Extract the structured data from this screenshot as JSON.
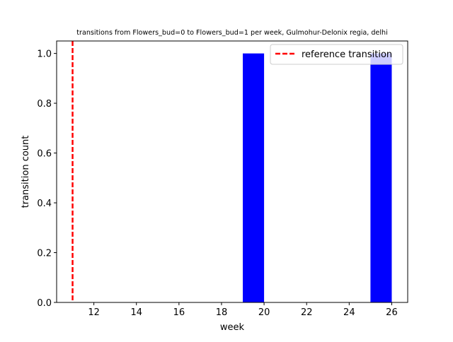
{
  "chart_data": {
    "type": "bar",
    "title": "transitions from Flowers_bud=0 to Flowers_bud=1 per week, Gulmohur-Delonix regia, delhi",
    "xlabel": "week",
    "ylabel": "transition count",
    "xlim": [
      10.25,
      26.75
    ],
    "ylim": [
      0,
      1.05
    ],
    "x_ticks": [
      12,
      14,
      16,
      18,
      20,
      22,
      24,
      26
    ],
    "y_ticks": [
      0.0,
      0.2,
      0.4,
      0.6,
      0.8,
      1.0
    ],
    "y_tick_labels": [
      "0.0",
      "0.2",
      "0.4",
      "0.6",
      "0.8",
      "1.0"
    ],
    "bar_width": 1,
    "bars": [
      {
        "x": 19.5,
        "value": 1
      },
      {
        "x": 25.5,
        "value": 1
      }
    ],
    "bar_color": "#0000ff",
    "reference_line": {
      "x": 11,
      "label": "reference transition",
      "color": "#ff0000",
      "style": "dashed"
    },
    "legend_position": "top-right",
    "grid": false
  }
}
